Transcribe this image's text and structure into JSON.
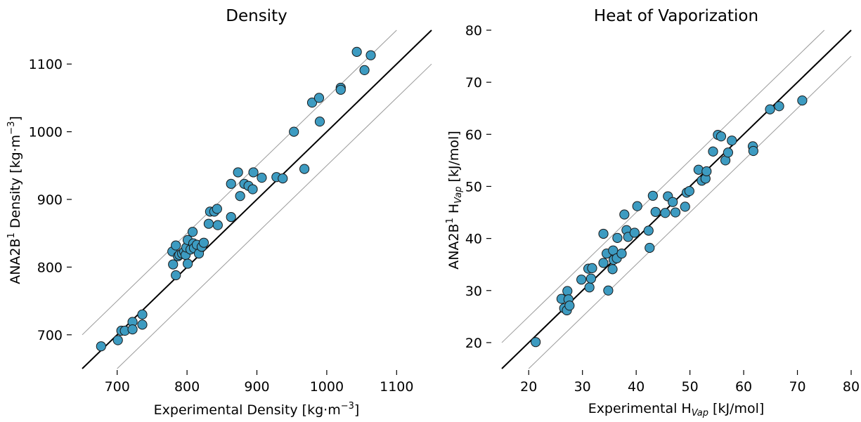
{
  "chart_data": [
    {
      "type": "scatter",
      "title": "Density",
      "xlabel": {
        "pre": "Experimental Density [kg·m",
        "sup": "−3",
        "post": "]"
      },
      "ylabel": {
        "pre": "ANA2B",
        "sup": "1",
        "mid": " Density [kg·m",
        "sup2": "−3",
        "post": "]"
      },
      "xlim": [
        650,
        1150
      ],
      "ylim": [
        650,
        1150
      ],
      "xticks": [
        "700",
        "800",
        "900",
        "1000",
        "1100"
      ],
      "yticks": [
        "700",
        "800",
        "900",
        "1000",
        "1100"
      ],
      "grid": false,
      "marker_color": "#3d9bc1",
      "identity_line": true,
      "band": 50,
      "points": [
        [
          677,
          683
        ],
        [
          701,
          692
        ],
        [
          706,
          706
        ],
        [
          711,
          706
        ],
        [
          722,
          719
        ],
        [
          722,
          708
        ],
        [
          736,
          715
        ],
        [
          736,
          730
        ],
        [
          779,
          823
        ],
        [
          780,
          804
        ],
        [
          784,
          788
        ],
        [
          784,
          832
        ],
        [
          787,
          816
        ],
        [
          789,
          818
        ],
        [
          793,
          820
        ],
        [
          796,
          823
        ],
        [
          798,
          818
        ],
        [
          799,
          829
        ],
        [
          801,
          840
        ],
        [
          801,
          805
        ],
        [
          805,
          826
        ],
        [
          808,
          852
        ],
        [
          809,
          835
        ],
        [
          810,
          828
        ],
        [
          814,
          833
        ],
        [
          817,
          820
        ],
        [
          821,
          830
        ],
        [
          824,
          836
        ],
        [
          831,
          864
        ],
        [
          833,
          882
        ],
        [
          839,
          882
        ],
        [
          843,
          886
        ],
        [
          844,
          862
        ],
        [
          863,
          874
        ],
        [
          863,
          923
        ],
        [
          873,
          940
        ],
        [
          876,
          905
        ],
        [
          882,
          923
        ],
        [
          888,
          920
        ],
        [
          894,
          915
        ],
        [
          895,
          940
        ],
        [
          907,
          932
        ],
        [
          928,
          933
        ],
        [
          937,
          931
        ],
        [
          953,
          1000
        ],
        [
          968,
          945
        ],
        [
          979,
          1043
        ],
        [
          989,
          1050
        ],
        [
          990,
          1015
        ],
        [
          1020,
          1065
        ],
        [
          1020,
          1062
        ],
        [
          1043,
          1118
        ],
        [
          1054,
          1091
        ],
        [
          1063,
          1113
        ]
      ]
    },
    {
      "type": "scatter",
      "title": "Heat of Vaporization",
      "xlabel": {
        "pre": "Experimental H",
        "sub": "Vap",
        "post": " [kJ/mol]"
      },
      "ylabel": {
        "pre": "ANA2B",
        "sup": "1",
        "mid": " H",
        "sub": "Vap",
        "post": " [kJ/mol]"
      },
      "xlim": [
        15,
        80
      ],
      "ylim": [
        15,
        80
      ],
      "xticks": [
        "20",
        "30",
        "40",
        "50",
        "60",
        "70",
        "80"
      ],
      "yticks": [
        "20",
        "30",
        "40",
        "50",
        "60",
        "70",
        "80"
      ],
      "grid": false,
      "marker_color": "#3d9bc1",
      "identity_line": true,
      "band": 5,
      "points": [
        [
          21.3,
          20.1
        ],
        [
          26.1,
          28.4
        ],
        [
          26.6,
          26.6
        ],
        [
          27.1,
          26.2
        ],
        [
          27.2,
          29.9
        ],
        [
          27.4,
          28.3
        ],
        [
          27.6,
          27.1
        ],
        [
          29.8,
          32.1
        ],
        [
          31.1,
          34.2
        ],
        [
          31.3,
          30.6
        ],
        [
          31.6,
          32.3
        ],
        [
          31.8,
          34.3
        ],
        [
          33.9,
          35.3
        ],
        [
          33.9,
          40.9
        ],
        [
          34.5,
          37.1
        ],
        [
          34.8,
          30.0
        ],
        [
          35.6,
          34.1
        ],
        [
          35.7,
          37.7
        ],
        [
          35.8,
          35.9
        ],
        [
          36.4,
          36.2
        ],
        [
          36.5,
          40.1
        ],
        [
          37.3,
          37.1
        ],
        [
          37.8,
          44.6
        ],
        [
          38.2,
          41.6
        ],
        [
          38.5,
          40.3
        ],
        [
          39.7,
          41.1
        ],
        [
          40.2,
          46.2
        ],
        [
          42.3,
          41.5
        ],
        [
          42.5,
          38.2
        ],
        [
          43.1,
          48.2
        ],
        [
          43.6,
          45.1
        ],
        [
          45.4,
          44.9
        ],
        [
          45.9,
          48.1
        ],
        [
          46.8,
          47.0
        ],
        [
          47.3,
          45.0
        ],
        [
          49.1,
          46.1
        ],
        [
          49.4,
          48.8
        ],
        [
          49.9,
          49.1
        ],
        [
          51.6,
          53.2
        ],
        [
          52.2,
          51.1
        ],
        [
          52.9,
          51.5
        ],
        [
          53.1,
          52.9
        ],
        [
          54.3,
          56.7
        ],
        [
          55.2,
          59.9
        ],
        [
          55.8,
          59.6
        ],
        [
          56.6,
          55.0
        ],
        [
          57.1,
          56.5
        ],
        [
          57.8,
          58.8
        ],
        [
          61.7,
          57.7
        ],
        [
          61.8,
          56.8
        ],
        [
          64.9,
          64.8
        ],
        [
          66.6,
          65.4
        ],
        [
          70.9,
          66.5
        ]
      ]
    }
  ]
}
